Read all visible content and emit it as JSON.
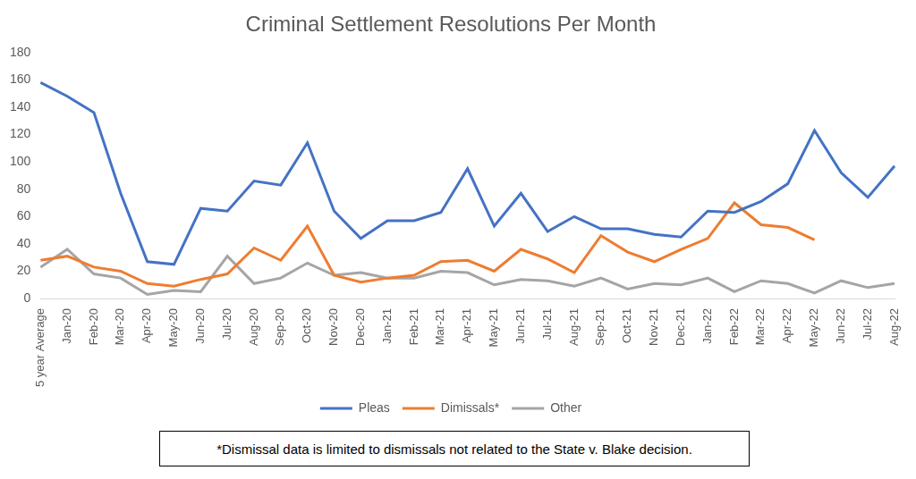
{
  "chart_data": {
    "type": "line",
    "title": "Criminal Settlement Resolutions Per Month",
    "categories": [
      "5 year Average",
      "Jan-20",
      "Feb-20",
      "Mar-20",
      "Apr-20",
      "May-20",
      "Jun-20",
      "Jul-20",
      "Aug-20",
      "Sep-20",
      "Oct-20",
      "Nov-20",
      "Dec-20",
      "Jan-21",
      "Feb-21",
      "Mar-21",
      "Apr-21",
      "May-21",
      "Jun-21",
      "Jul-21",
      "Aug-21",
      "Sep-21",
      "Oct-21",
      "Nov-21",
      "Dec-21",
      "Jan-22",
      "Feb-22",
      "Mar-22",
      "Apr-22",
      "May-22",
      "Jun-22",
      "Jul-22",
      "Aug-22"
    ],
    "series": [
      {
        "name": "Pleas",
        "color": "#4472c4",
        "values": [
          158,
          148,
          136,
          77,
          27,
          25,
          66,
          64,
          86,
          83,
          114,
          64,
          44,
          57,
          57,
          63,
          95,
          53,
          77,
          49,
          60,
          51,
          51,
          47,
          45,
          64,
          63,
          71,
          84,
          123,
          92,
          74,
          97
        ]
      },
      {
        "name": "Dimissals*",
        "color": "#ed7d31",
        "values": [
          28,
          31,
          23,
          20,
          11,
          9,
          14,
          18,
          37,
          28,
          53,
          17,
          12,
          15,
          17,
          27,
          28,
          20,
          36,
          29,
          19,
          46,
          34,
          27,
          36,
          44,
          70,
          54,
          52,
          43,
          null,
          null,
          null
        ]
      },
      {
        "name": "Other",
        "color": "#a5a5a5",
        "values": [
          23,
          36,
          18,
          15,
          3,
          6,
          5,
          31,
          11,
          15,
          26,
          17,
          19,
          15,
          15,
          20,
          19,
          10,
          14,
          13,
          9,
          15,
          7,
          11,
          10,
          15,
          5,
          13,
          11,
          4,
          13,
          8,
          11
        ]
      }
    ],
    "ylim": [
      0,
      180
    ],
    "yticks": [
      0,
      20,
      40,
      60,
      80,
      100,
      120,
      140,
      160,
      180
    ],
    "grid": false,
    "legend": "bottom",
    "annotations": [
      "*Dismissal data is limited to dismissals not related to the State v. Blake decision."
    ]
  }
}
